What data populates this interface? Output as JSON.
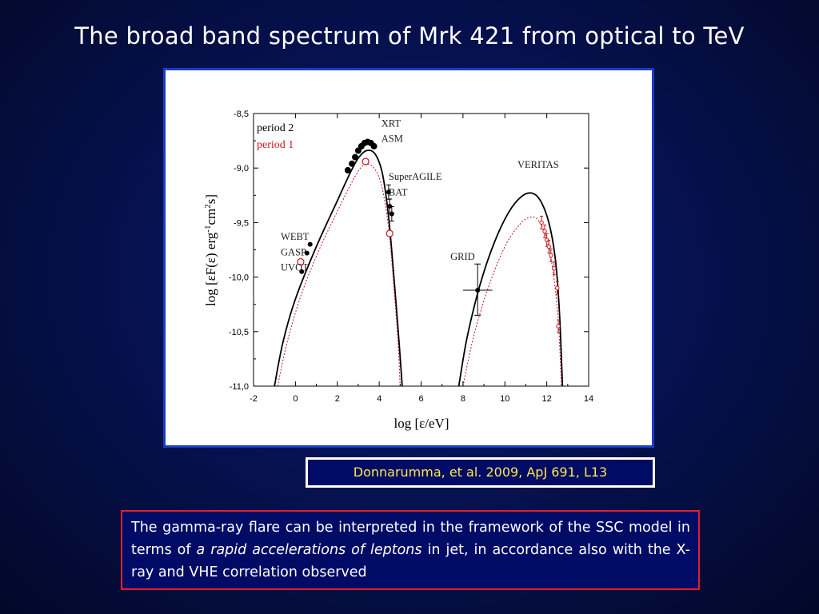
{
  "slide": {
    "title": "The broad band spectrum of Mrk 421 from optical to TeV",
    "citation": "Donnarumma,  et al. 2009, ApJ 691, L13",
    "caption": {
      "part1": "The gamma-ray flare can be interpreted in the framework of the SSC model in terms of ",
      "emphasis": "a rapid accelerations of leptons",
      "part2": " in jet, in accordance also with the X-ray and VHE correlation observed"
    }
  },
  "chart_data": {
    "type": "scatter",
    "xlabel": "log [ε/eV]",
    "ylabel": "log [εF(ε) erg",
    "ylabel_sup1": "-1",
    "ylabel_mid": "cm",
    "ylabel_sup2": "2",
    "ylabel_end": "s]",
    "xlim": [
      -2,
      14
    ],
    "ylim": [
      -11.0,
      -8.5
    ],
    "xticks": [
      -2,
      0,
      2,
      4,
      6,
      8,
      10,
      12,
      14
    ],
    "yticks": [
      -11.0,
      -10.5,
      -10.0,
      -9.5,
      -9.0,
      -8.5
    ],
    "yticklabels": [
      "-11,0",
      "-10,5",
      "-10,0",
      "-9,5",
      "-9,0",
      "-8,5"
    ],
    "legend": [
      {
        "label": "period 2",
        "color": "#000000"
      },
      {
        "label": "period 1",
        "color": "#c8141e"
      }
    ],
    "annotations": [
      {
        "text": "XRT",
        "x": 4.1,
        "y": -8.62
      },
      {
        "text": "ASM",
        "x": 4.1,
        "y": -8.76
      },
      {
        "text": "SuperAGILE",
        "x": 4.45,
        "y": -9.11
      },
      {
        "text": "BAT",
        "x": 4.45,
        "y": -9.25
      },
      {
        "text": "VERITAS",
        "x": 10.6,
        "y": -9.0
      },
      {
        "text": "WEBT",
        "x": -0.7,
        "y": -9.66
      },
      {
        "text": "GASP",
        "x": -0.7,
        "y": -9.8
      },
      {
        "text": "UVOT",
        "x": -0.7,
        "y": -9.94
      },
      {
        "text": "GRID",
        "x": 7.4,
        "y": -9.84
      }
    ],
    "series": [
      {
        "name": "period 2",
        "color": "#000000",
        "line_style": "solid",
        "model_sync": [
          [
            -1.0,
            -11.0
          ],
          [
            -0.6,
            -10.6
          ],
          [
            0,
            -10.2
          ],
          [
            1,
            -9.72
          ],
          [
            2,
            -9.3
          ],
          [
            2.6,
            -9.05
          ],
          [
            3.0,
            -8.91
          ],
          [
            3.4,
            -8.84
          ],
          [
            3.8,
            -8.87
          ],
          [
            4.15,
            -9.05
          ],
          [
            4.45,
            -9.45
          ],
          [
            4.7,
            -10.0
          ],
          [
            4.95,
            -10.6
          ],
          [
            5.1,
            -11.0
          ]
        ],
        "model_ic": [
          [
            7.8,
            -11.0
          ],
          [
            8.2,
            -10.55
          ],
          [
            8.8,
            -10.08
          ],
          [
            9.5,
            -9.68
          ],
          [
            10.2,
            -9.4
          ],
          [
            10.8,
            -9.26
          ],
          [
            11.3,
            -9.23
          ],
          [
            11.7,
            -9.3
          ],
          [
            12.1,
            -9.5
          ],
          [
            12.4,
            -9.82
          ],
          [
            12.6,
            -10.3
          ],
          [
            12.75,
            -11.0
          ]
        ],
        "points": [
          {
            "x": 0.3,
            "y": -9.95
          },
          {
            "x": 0.55,
            "y": -9.78
          },
          {
            "x": 0.7,
            "y": -9.7
          },
          {
            "x": 2.5,
            "y": -9.02
          },
          {
            "x": 2.7,
            "y": -8.96
          },
          {
            "x": 2.85,
            "y": -8.9
          },
          {
            "x": 3.0,
            "y": -8.84
          },
          {
            "x": 3.15,
            "y": -8.8
          },
          {
            "x": 3.3,
            "y": -8.77
          },
          {
            "x": 3.45,
            "y": -8.76
          },
          {
            "x": 3.6,
            "y": -8.77
          },
          {
            "x": 3.75,
            "y": -8.8
          },
          {
            "x": 4.45,
            "y": -9.22
          },
          {
            "x": 4.5,
            "y": -9.35
          },
          {
            "x": 4.6,
            "y": -9.42
          },
          {
            "x": 8.7,
            "y": -10.12
          }
        ]
      },
      {
        "name": "period 1",
        "color": "#c8141e",
        "line_style": "dotted",
        "model_sync": [
          [
            -0.85,
            -11.0
          ],
          [
            -0.4,
            -10.6
          ],
          [
            0.3,
            -10.15
          ],
          [
            1.2,
            -9.72
          ],
          [
            2.2,
            -9.32
          ],
          [
            2.9,
            -9.06
          ],
          [
            3.3,
            -8.97
          ],
          [
            3.7,
            -8.99
          ],
          [
            4.1,
            -9.15
          ],
          [
            4.45,
            -9.55
          ],
          [
            4.7,
            -10.1
          ],
          [
            4.9,
            -10.6
          ],
          [
            5.0,
            -11.0
          ]
        ],
        "model_ic": [
          [
            8.0,
            -11.0
          ],
          [
            8.5,
            -10.55
          ],
          [
            9.2,
            -10.1
          ],
          [
            10.0,
            -9.72
          ],
          [
            10.7,
            -9.52
          ],
          [
            11.2,
            -9.45
          ],
          [
            11.6,
            -9.48
          ],
          [
            12.0,
            -9.65
          ],
          [
            12.3,
            -9.95
          ],
          [
            12.55,
            -10.4
          ],
          [
            12.7,
            -11.0
          ]
        ],
        "points": [
          {
            "x": 0.25,
            "y": -9.86
          },
          {
            "x": 3.35,
            "y": -8.94
          },
          {
            "x": 4.5,
            "y": -9.6
          }
        ],
        "veritas_points": [
          {
            "x": 11.75,
            "y": -9.5
          },
          {
            "x": 11.9,
            "y": -9.58
          },
          {
            "x": 12.0,
            "y": -9.66
          },
          {
            "x": 12.1,
            "y": -9.72
          },
          {
            "x": 12.2,
            "y": -9.8
          },
          {
            "x": 12.35,
            "y": -9.92
          },
          {
            "x": 12.5,
            "y": -10.1
          },
          {
            "x": 12.55,
            "y": -10.45
          }
        ]
      }
    ]
  }
}
